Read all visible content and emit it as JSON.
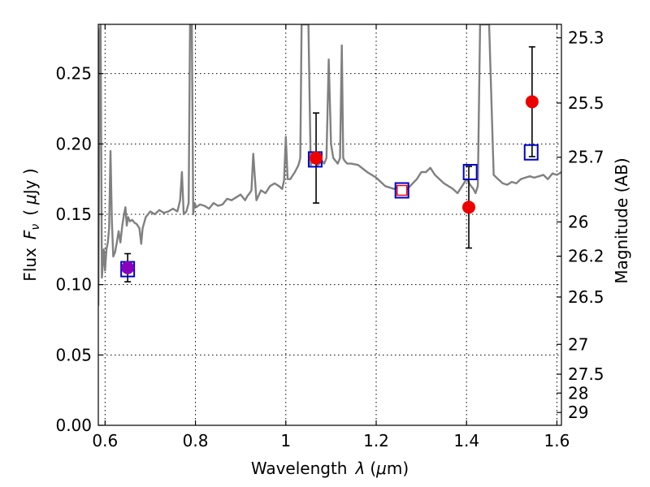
{
  "chart_data": {
    "type": "line",
    "xlabel_text": "Wavelength",
    "xlabel_symbol": "λ",
    "xlabel_unit_open": "(",
    "xlabel_unit_mu": "μ",
    "xlabel_unit_rest": "m)",
    "ylabel_text": "Flux",
    "ylabel_symbol": "F",
    "ylabel_sub": "ν",
    "ylabel_unit_open": "(",
    "ylabel_unit_mu": "μ",
    "ylabel_unit_rest": "Jy )",
    "y2label": "Magnitude (AB)",
    "xlim": [
      0.585,
      1.61
    ],
    "ylim": [
      0.0,
      0.285
    ],
    "grid": true,
    "x_ticks": [
      0.6,
      0.8,
      1.0,
      1.2,
      1.4,
      1.6
    ],
    "x_tick_labels": [
      "0.6",
      "0.8",
      "1",
      "1.2",
      "1.4",
      "1.6"
    ],
    "y_ticks": [
      0.0,
      0.05,
      0.1,
      0.15,
      0.2,
      0.25
    ],
    "y_tick_labels": [
      "0.00",
      "0.05",
      "0.10",
      "0.15",
      "0.20",
      "0.25"
    ],
    "y2_ticks": [
      {
        "mag": 25.3,
        "label": "25.3"
      },
      {
        "mag": 25.5,
        "label": "25.5"
      },
      {
        "mag": 25.7,
        "label": "25.7"
      },
      {
        "mag": 26.0,
        "label": "26"
      },
      {
        "mag": 26.2,
        "label": "26.2"
      },
      {
        "mag": 26.5,
        "label": "26.5"
      },
      {
        "mag": 27.0,
        "label": "27"
      },
      {
        "mag": 27.5,
        "label": "27.5"
      },
      {
        "mag": 28.0,
        "label": "28"
      },
      {
        "mag": 29.0,
        "label": "29"
      }
    ],
    "colors": {
      "model": "#808080",
      "observed": "#ee0000",
      "synthetic": "#0000cc",
      "purple_point": "#8800bb",
      "errorbar": "#000000"
    },
    "model_spectrum": {
      "x": [
        0.585,
        0.588,
        0.59,
        0.593,
        0.597,
        0.6,
        0.603,
        0.606,
        0.609,
        0.612,
        0.615,
        0.618,
        0.622,
        0.626,
        0.63,
        0.634,
        0.638,
        0.642,
        0.645,
        0.648,
        0.651,
        0.655,
        0.66,
        0.665,
        0.67,
        0.676,
        0.68,
        0.683,
        0.69,
        0.7,
        0.71,
        0.72,
        0.73,
        0.74,
        0.75,
        0.76,
        0.766,
        0.77,
        0.774,
        0.78,
        0.785,
        0.788,
        0.792,
        0.795,
        0.798,
        0.802,
        0.81,
        0.82,
        0.83,
        0.84,
        0.85,
        0.86,
        0.87,
        0.88,
        0.89,
        0.9,
        0.91,
        0.915,
        0.92,
        0.924,
        0.928,
        0.935,
        0.945,
        0.955,
        0.965,
        0.975,
        0.985,
        0.992,
        0.996,
        1.0,
        1.004,
        1.01,
        1.02,
        1.028,
        1.032,
        1.035,
        1.04,
        1.045,
        1.05,
        1.055,
        1.06,
        1.065,
        1.07,
        1.075,
        1.08,
        1.085,
        1.09,
        1.095,
        1.1,
        1.105,
        1.11,
        1.115,
        1.12,
        1.124,
        1.127,
        1.13,
        1.136,
        1.145,
        1.16,
        1.18,
        1.2,
        1.22,
        1.24,
        1.25,
        1.26,
        1.275,
        1.29,
        1.3,
        1.31,
        1.32,
        1.33,
        1.34,
        1.35,
        1.36,
        1.37,
        1.38,
        1.39,
        1.4,
        1.41,
        1.415,
        1.42,
        1.425,
        1.43,
        1.435,
        1.44,
        1.45,
        1.46,
        1.47,
        1.48,
        1.49,
        1.5,
        1.51,
        1.52,
        1.53,
        1.54,
        1.55,
        1.56,
        1.57,
        1.58,
        1.59,
        1.6,
        1.61
      ],
      "y": [
        0.085,
        0.28,
        0.285,
        0.105,
        0.125,
        0.11,
        0.125,
        0.13,
        0.14,
        0.195,
        0.145,
        0.12,
        0.123,
        0.13,
        0.138,
        0.13,
        0.142,
        0.15,
        0.155,
        0.142,
        0.148,
        0.145,
        0.146,
        0.144,
        0.143,
        0.14,
        0.129,
        0.14,
        0.148,
        0.152,
        0.15,
        0.153,
        0.151,
        0.152,
        0.154,
        0.152,
        0.16,
        0.18,
        0.15,
        0.152,
        0.158,
        0.285,
        0.285,
        0.15,
        0.158,
        0.155,
        0.157,
        0.156,
        0.154,
        0.158,
        0.156,
        0.157,
        0.161,
        0.16,
        0.162,
        0.164,
        0.16,
        0.163,
        0.165,
        0.167,
        0.193,
        0.16,
        0.167,
        0.165,
        0.17,
        0.172,
        0.17,
        0.168,
        0.174,
        0.205,
        0.175,
        0.175,
        0.18,
        0.185,
        0.19,
        0.285,
        0.285,
        0.285,
        0.285,
        0.185,
        0.188,
        0.19,
        0.185,
        0.186,
        0.188,
        0.186,
        0.19,
        0.26,
        0.2,
        0.19,
        0.188,
        0.186,
        0.19,
        0.27,
        0.19,
        0.188,
        0.186,
        0.186,
        0.185,
        0.18,
        0.176,
        0.17,
        0.168,
        0.17,
        0.165,
        0.17,
        0.175,
        0.18,
        0.18,
        0.183,
        0.178,
        0.175,
        0.172,
        0.17,
        0.168,
        0.165,
        0.17,
        0.175,
        0.17,
        0.168,
        0.165,
        0.17,
        0.285,
        0.285,
        0.285,
        0.285,
        0.178,
        0.175,
        0.172,
        0.171,
        0.173,
        0.172,
        0.175,
        0.176,
        0.177,
        0.176,
        0.177,
        0.178,
        0.175,
        0.179,
        0.178,
        0.18
      ]
    },
    "observed": [
      {
        "x": 0.65,
        "y": 0.112,
        "yerr": 0.01
      },
      {
        "x": 1.067,
        "y": 0.19,
        "yerr": 0.032
      },
      {
        "x": 1.405,
        "y": 0.155,
        "yerr": 0.029
      },
      {
        "x": 1.545,
        "y": 0.23,
        "yerr": 0.039
      }
    ],
    "synthetic": [
      {
        "x": 0.65,
        "y": 0.111
      },
      {
        "x": 1.065,
        "y": 0.189
      },
      {
        "x": 1.257,
        "y": 0.167
      },
      {
        "x": 1.408,
        "y": 0.18
      },
      {
        "x": 1.543,
        "y": 0.194
      }
    ],
    "open_observed_marker": {
      "x": 1.257,
      "y": 0.167
    }
  }
}
